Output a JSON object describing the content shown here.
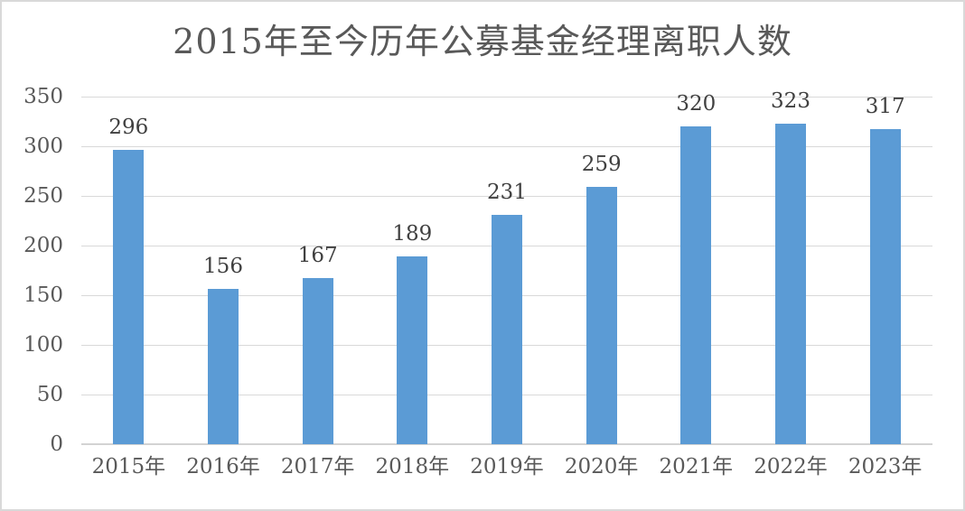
{
  "page": {
    "background": "#ffffff",
    "border_color": "#d9d9d9"
  },
  "chart_data": {
    "type": "bar",
    "title": "2015年至今历年公募基金经理离职人数",
    "categories": [
      "2015年",
      "2016年",
      "2017年",
      "2018年",
      "2019年",
      "2020年",
      "2021年",
      "2022年",
      "2023年"
    ],
    "values": [
      296,
      156,
      167,
      189,
      231,
      259,
      320,
      323,
      317
    ],
    "xlabel": "",
    "ylabel": "",
    "ylim": [
      0,
      350
    ],
    "yticks": [
      0,
      50,
      100,
      150,
      200,
      250,
      300,
      350
    ],
    "grid": true,
    "legend": "none",
    "data_labels": "outside-end",
    "bar_color": "#5B9BD5",
    "gridline_color": "#d9d9d9",
    "axis_line_color": "#d3d3d3",
    "title_color": "#595959",
    "tick_label_color": "#595959",
    "value_label_color": "#404040"
  }
}
